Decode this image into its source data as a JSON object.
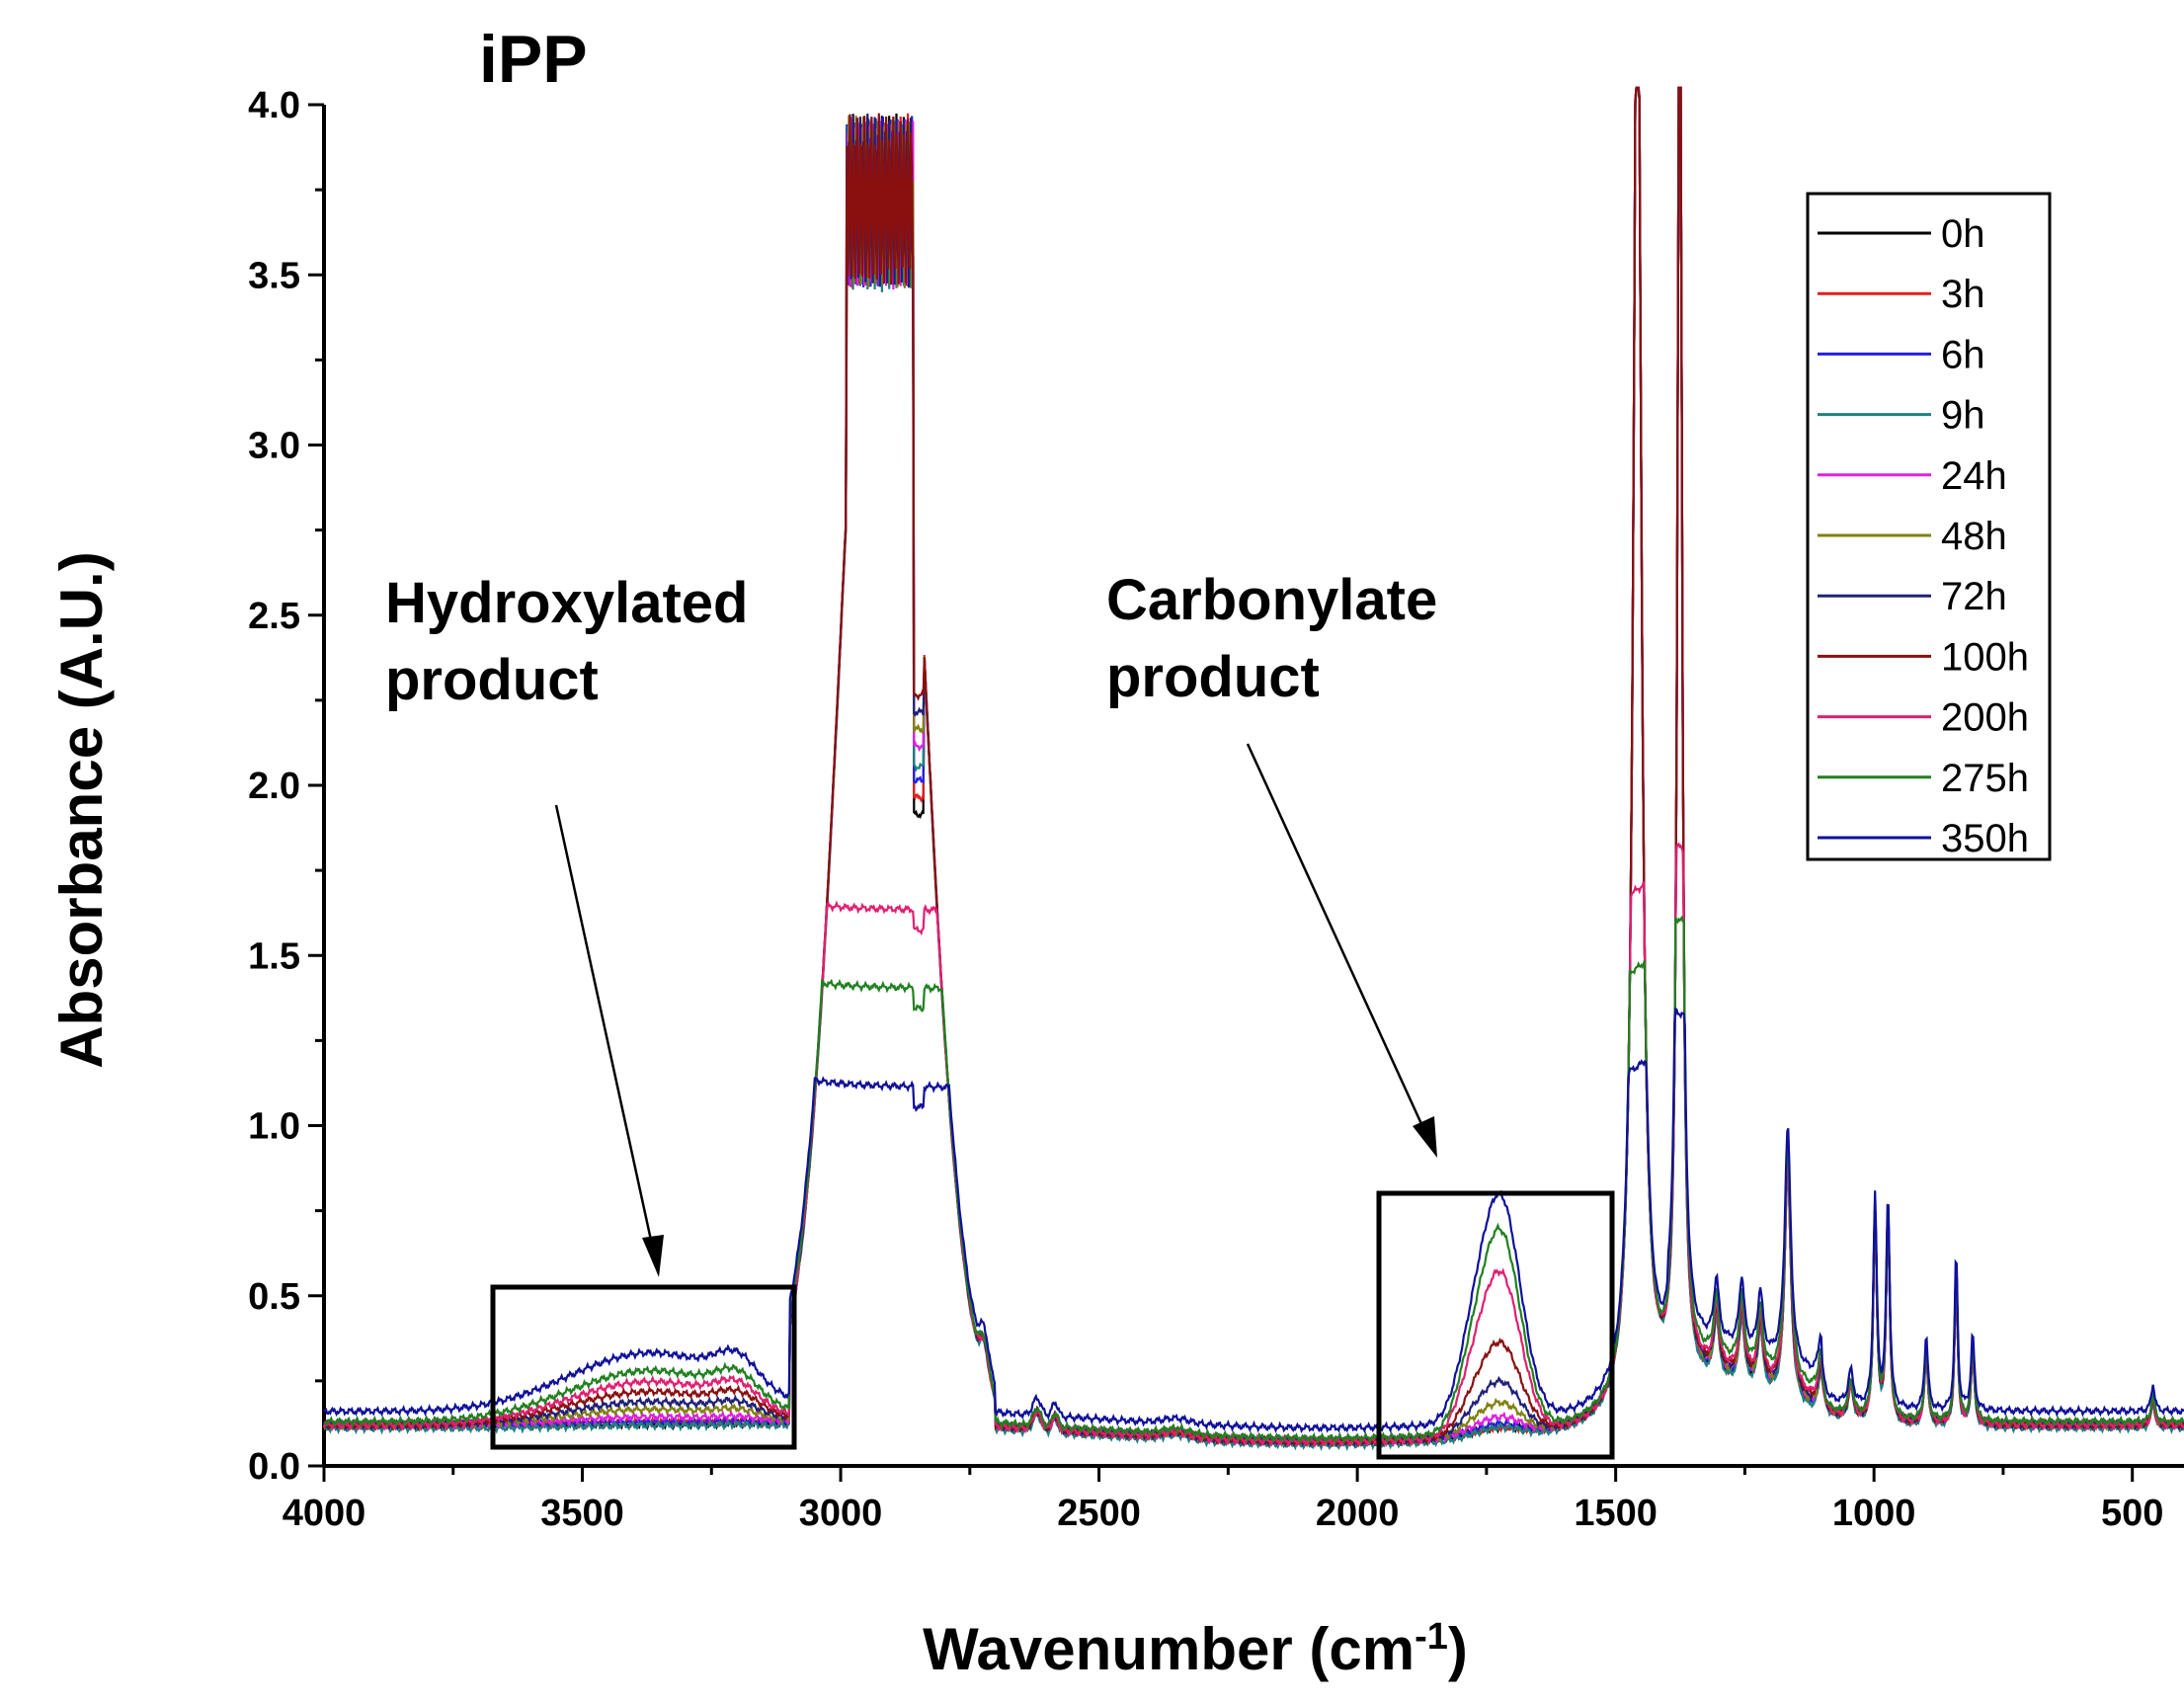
{
  "chart_data": {
    "type": "line",
    "title": "iPP",
    "xlabel": "Wavenumber (cm",
    "xlabel_sup": "-1",
    "xlabel_end": ")",
    "ylabel": "Absorbance (A.U.)",
    "xlim": [
      4000,
      400
    ],
    "ylim": [
      0.0,
      4.0
    ],
    "xticks": [
      4000,
      3500,
      3000,
      2500,
      2000,
      1500,
      1000,
      500
    ],
    "yticks": [
      "0.0",
      "0.5",
      "1.0",
      "1.5",
      "2.0",
      "2.5",
      "3.0",
      "3.5",
      "4.0"
    ],
    "legend_position": "top-right",
    "series": [
      {
        "name": "0h",
        "color": "#000000",
        "baseline": 0.12,
        "oh": 0.0,
        "co": 0.02,
        "sat": 4.2,
        "lowfreq": 0.0
      },
      {
        "name": "3h",
        "color": "#e0201e",
        "baseline": 0.12,
        "oh": 0.01,
        "co": 0.02,
        "sat": 4.2,
        "lowfreq": 0.0
      },
      {
        "name": "6h",
        "color": "#2020e8",
        "baseline": 0.12,
        "oh": 0.01,
        "co": 0.03,
        "sat": 4.2,
        "lowfreq": 0.0
      },
      {
        "name": "9h",
        "color": "#208080",
        "baseline": 0.11,
        "oh": 0.01,
        "co": 0.03,
        "sat": 4.2,
        "lowfreq": 0.0
      },
      {
        "name": "24h",
        "color": "#e020e0",
        "baseline": 0.12,
        "oh": 0.03,
        "co": 0.05,
        "sat": 4.2,
        "lowfreq": 0.01
      },
      {
        "name": "48h",
        "color": "#808010",
        "baseline": 0.12,
        "oh": 0.06,
        "co": 0.09,
        "sat": 4.2,
        "lowfreq": 0.01
      },
      {
        "name": "72h",
        "color": "#20207a",
        "baseline": 0.12,
        "oh": 0.09,
        "co": 0.15,
        "sat": 4.2,
        "lowfreq": 0.02
      },
      {
        "name": "100h",
        "color": "#8a1010",
        "baseline": 0.12,
        "oh": 0.13,
        "co": 0.26,
        "sat": 4.2,
        "lowfreq": 0.03
      },
      {
        "name": "200h",
        "color": "#e02070",
        "baseline": 0.12,
        "oh": 0.17,
        "co": 0.46,
        "sat": 1.52,
        "lowfreq": 0.04
      },
      {
        "name": "275h",
        "color": "#208020",
        "baseline": 0.13,
        "oh": 0.2,
        "co": 0.57,
        "sat": 1.28,
        "lowfreq": 0.06
      },
      {
        "name": "350h",
        "color": "#10109a",
        "baseline": 0.16,
        "oh": 0.23,
        "co": 0.64,
        "sat": 0.96,
        "lowfreq": 0.08
      }
    ],
    "annotations": [
      {
        "id": "hydroxylated",
        "lines": [
          "Hydroxylated",
          "product"
        ]
      },
      {
        "id": "carbonylate",
        "lines": [
          "Carbonylate",
          "product"
        ]
      }
    ]
  }
}
